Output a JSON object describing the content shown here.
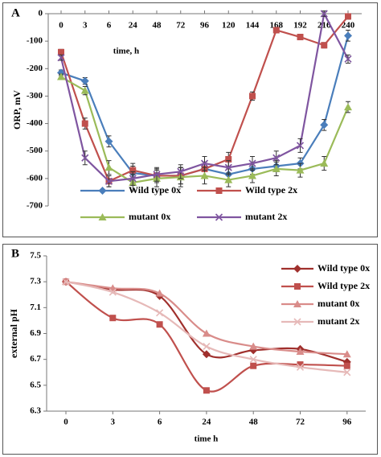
{
  "chart_data": [
    {
      "type": "line",
      "panel": "A",
      "ylabel": "ORP, mV",
      "annotation": "time, h",
      "categories": [
        "0",
        "3",
        "6",
        "24",
        "48",
        "72",
        "96",
        "120",
        "144",
        "168",
        "192",
        "216",
        "240"
      ],
      "ylim": [
        -700,
        0
      ],
      "yticks": [
        0,
        -100,
        -200,
        -300,
        -400,
        -500,
        -600,
        -700
      ],
      "legend": "bottom",
      "error_bars": true,
      "smooth": false,
      "series": [
        {
          "name": "Wild type 0x",
          "color": "#4a7ebb",
          "marker": "diamond",
          "values": [
            -215,
            -245,
            -465,
            -580,
            -590,
            -590,
            -565,
            -585,
            -565,
            -555,
            -545,
            -405,
            -80
          ],
          "errors": [
            10,
            12,
            20,
            25,
            25,
            30,
            25,
            20,
            20,
            20,
            20,
            20,
            20
          ]
        },
        {
          "name": "Wild type 2x",
          "color": "#c0504d",
          "marker": "square",
          "values": [
            -140,
            -400,
            -610,
            -570,
            -590,
            -590,
            -565,
            -530,
            -300,
            -60,
            -85,
            -115,
            -10
          ],
          "errors": [
            10,
            20,
            20,
            25,
            25,
            30,
            25,
            25,
            15,
            10,
            10,
            10,
            10
          ]
        },
        {
          "name": "mutant 0x",
          "color": "#9bbb59",
          "marker": "triangle",
          "values": [
            -230,
            -280,
            -560,
            -615,
            -600,
            -595,
            -590,
            -605,
            -590,
            -565,
            -570,
            -545,
            -340
          ],
          "errors": [
            10,
            15,
            25,
            30,
            30,
            35,
            30,
            25,
            25,
            25,
            25,
            25,
            20
          ]
        },
        {
          "name": "mutant 2x",
          "color": "#7f55a0",
          "marker": "x",
          "values": [
            -160,
            -525,
            -610,
            -600,
            -585,
            -575,
            -545,
            -560,
            -545,
            -525,
            -480,
            0,
            -165
          ],
          "errors": [
            10,
            25,
            20,
            25,
            25,
            25,
            25,
            25,
            25,
            25,
            25,
            10,
            15
          ]
        }
      ]
    },
    {
      "type": "line",
      "panel": "B",
      "ylabel": "external pH",
      "xlabel": "time h",
      "categories": [
        "0",
        "3",
        "6",
        "24",
        "48",
        "72",
        "96"
      ],
      "ylim": [
        6.3,
        7.5
      ],
      "yticks": [
        6.3,
        6.5,
        6.7,
        6.9,
        7.1,
        7.3,
        7.5
      ],
      "legend": "right",
      "error_bars": false,
      "smooth": true,
      "series": [
        {
          "name": "Wild type 0x",
          "color": "#a0302d",
          "marker": "diamond",
          "values": [
            7.3,
            7.24,
            7.19,
            6.74,
            6.77,
            6.78,
            6.68
          ]
        },
        {
          "name": "Wild type 2x",
          "color": "#c0504d",
          "marker": "square",
          "values": [
            7.3,
            7.02,
            6.97,
            6.46,
            6.65,
            6.66,
            6.65
          ]
        },
        {
          "name": "mutant 0x",
          "color": "#d98c8a",
          "marker": "triangle",
          "values": [
            7.3,
            7.25,
            7.21,
            6.9,
            6.8,
            6.76,
            6.74
          ]
        },
        {
          "name": "mutant 2x",
          "color": "#e6b9b8",
          "marker": "x",
          "values": [
            7.3,
            7.22,
            7.06,
            6.8,
            6.7,
            6.64,
            6.6
          ]
        }
      ]
    }
  ]
}
